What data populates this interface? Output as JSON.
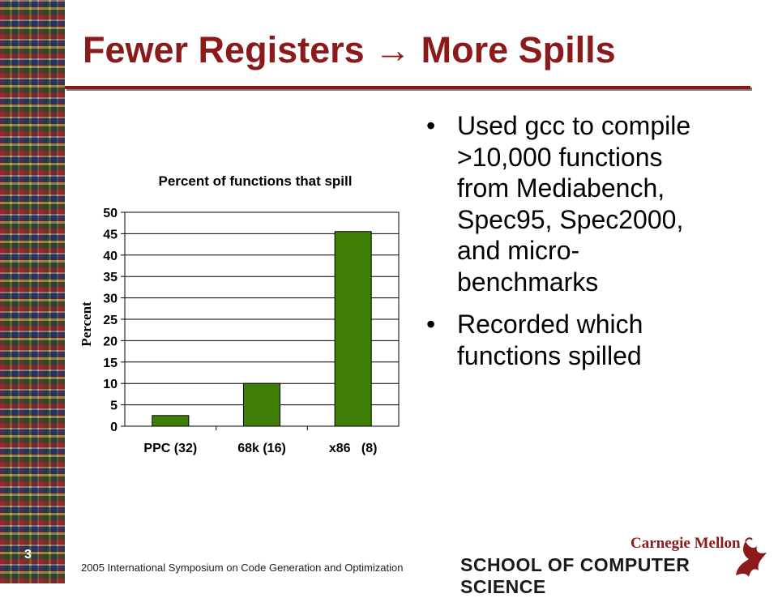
{
  "slide": {
    "title": "Fewer Registers → More Spills",
    "number": "3",
    "footer": "2005 International Symposium on Code Generation and Optimization",
    "logo": {
      "line1": "Carnegie Mellon",
      "line2": "SCHOOL OF COMPUTER SCIENCE",
      "mark_icon": "griffin-icon"
    },
    "bullets": [
      {
        "lines": [
          "Used gcc to compile",
          ">10,000 functions",
          "from Mediabench,",
          "Spec95, Spec2000,",
          "and micro-",
          "benchmarks"
        ]
      },
      {
        "lines": [
          "Recorded which",
          "functions spilled"
        ]
      }
    ],
    "colors": {
      "title": "#8b1a1a",
      "bar": "#3f7f08"
    }
  },
  "chart_data": {
    "type": "bar",
    "title": "Percent of functions that spill",
    "xlabel": "",
    "ylabel": "Percent",
    "categories": [
      "PPC (32)",
      "68k (16)",
      "x86   (8)"
    ],
    "values": [
      2.5,
      10,
      45.5
    ],
    "ylim": [
      0,
      50
    ],
    "yticks": [
      0,
      5,
      10,
      15,
      20,
      25,
      30,
      35,
      40,
      45,
      50
    ],
    "grid": true,
    "legend": "none"
  }
}
